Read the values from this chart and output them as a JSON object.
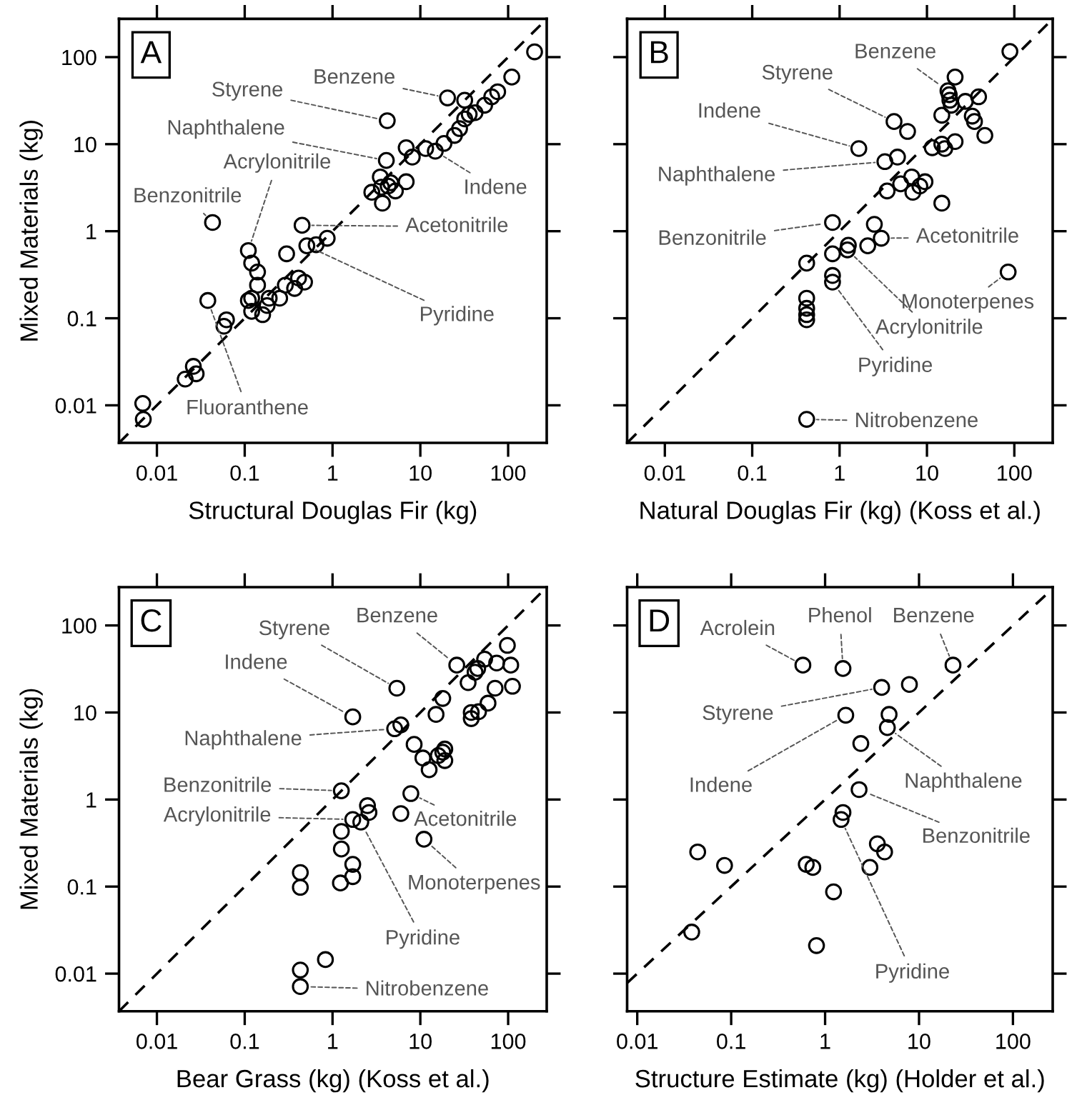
{
  "chart_data": [
    {
      "type": "scatter",
      "xlabel": "Structural Douglas Fir (kg)",
      "ylabel": "Mixed Materials (kg)",
      "log": "xy",
      "xlim": [
        0.0037,
        275
      ],
      "ylim": [
        0.0037,
        275
      ],
      "xticks": [
        0.01,
        0.1,
        1,
        10,
        100
      ],
      "yticks": [
        0.01,
        0.1,
        1,
        10,
        100
      ],
      "annotations": [
        "A",
        {
          "text": "Benzene",
          "x": 20.4,
          "y": 34
        },
        {
          "text": "Styrene",
          "x": 4.2,
          "y": 18.6
        },
        {
          "text": "Naphthalene",
          "x": 4.1,
          "y": 6.5
        },
        {
          "text": "Acrylonitrile",
          "x": 0.11,
          "y": 0.6
        },
        {
          "text": "Benzonitrile",
          "x": 0.043,
          "y": 1.26
        },
        {
          "text": "Indene",
          "x": 14.8,
          "y": 8.3
        },
        {
          "text": "Acetonitrile",
          "x": 0.45,
          "y": 1.17
        },
        {
          "text": "Pyridine",
          "x": 0.51,
          "y": 0.68
        },
        {
          "text": "Fluoranthene",
          "x": 0.038,
          "y": 0.16
        }
      ],
      "series": [
        {
          "type": "scatter",
          "color": "#000000",
          "marker": "circle",
          "x": [
            0.0069,
            0.007,
            0.021,
            0.026,
            0.028,
            0.038,
            0.043,
            0.058,
            0.062,
            0.11,
            0.12,
            0.14,
            0.14,
            0.11,
            0.12,
            0.12,
            0.16,
            0.19,
            0.18,
            0.25,
            0.3,
            0.29,
            0.37,
            0.41,
            0.48,
            0.45,
            0.51,
            0.65,
            0.87,
            2.8,
            3.5,
            3.7,
            3.6,
            4.3,
            4.6,
            5.2,
            6.9,
            4.1,
            4.2,
            6.9,
            8.1,
            11.5,
            14.8,
            18.6,
            20.4,
            24.5,
            28,
            32,
            32,
            36,
            42,
            54,
            65,
            76,
            110,
            200
          ],
          "values": [
            0.0105,
            0.0069,
            0.02,
            0.028,
            0.023,
            0.16,
            1.26,
            0.081,
            0.096,
            0.6,
            0.43,
            0.34,
            0.24,
            0.16,
            0.17,
            0.12,
            0.11,
            0.17,
            0.14,
            0.17,
            0.55,
            0.24,
            0.22,
            0.29,
            0.26,
            1.17,
            0.68,
            0.7,
            0.83,
            2.8,
            4.2,
            2.1,
            3.2,
            3.3,
            3.6,
            2.9,
            3.7,
            6.5,
            18.6,
            9.1,
            7.1,
            8.9,
            8.3,
            10.2,
            34,
            12.6,
            15.1,
            32,
            19.5,
            22,
            23,
            28,
            35,
            40,
            59,
            115
          ]
        },
        {
          "type": "line",
          "color": "#000000",
          "line_style": "dashed",
          "x": [
            0.0037,
            275
          ],
          "values": [
            0.0037,
            275
          ]
        }
      ]
    },
    {
      "type": "scatter",
      "xlabel": "Natural Douglas Fir (kg) (Koss et al.)",
      "log": "xy",
      "tick_labels": "x",
      "xlim": [
        0.0037,
        275
      ],
      "ylim": [
        0.0037,
        275
      ],
      "xticks": [
        0.01,
        0.1,
        1,
        10,
        100
      ],
      "yticks": [
        0.01,
        0.1,
        1,
        10,
        100
      ],
      "annotations": [
        "B",
        {
          "text": "Benzene",
          "x": 17.4,
          "y": 41
        },
        {
          "text": "Styrene",
          "x": 4.2,
          "y": 18.2
        },
        {
          "text": "Indene",
          "x": 1.66,
          "y": 8.9
        },
        {
          "text": "Naphthalene",
          "x": 3.3,
          "y": 6.3
        },
        {
          "text": "Benzonitrile",
          "x": 0.83,
          "y": 1.26
        },
        {
          "text": "Acetonitrile",
          "x": 3.0,
          "y": 0.83
        },
        {
          "text": "Monoterpenes",
          "x": 85,
          "y": 0.34
        },
        {
          "text": "Acrylonitrile",
          "x": 1.23,
          "y": 0.61
        },
        {
          "text": "Pyridine",
          "x": 0.83,
          "y": 0.26
        },
        {
          "text": "Nitrobenzene",
          "x": 0.42,
          "y": 0.0069
        }
      ],
      "series": [
        {
          "type": "scatter",
          "color": "#000000",
          "marker": "circle",
          "x": [
            89,
            21,
            17.4,
            18,
            18.3,
            19,
            27.5,
            39,
            14.8,
            33,
            35,
            46,
            4.2,
            6.0,
            1.66,
            11.5,
            14.8,
            16,
            21,
            3.3,
            4.6,
            3.5,
            5.0,
            6.7,
            6.9,
            8.3,
            9.5,
            14.8,
            0.83,
            2.5,
            3.0,
            2.1,
            1.26,
            1.23,
            0.83,
            0.42,
            0.83,
            0.83,
            85,
            0.42,
            0.42,
            0.42,
            0.42,
            0.42
          ],
          "values": [
            116,
            59,
            41,
            37,
            32,
            28,
            31,
            35,
            21.5,
            21,
            18.2,
            12.6,
            18.2,
            14,
            8.9,
            9.1,
            10,
            8.9,
            10.7,
            6.3,
            7.1,
            2.9,
            3.5,
            4.2,
            2.8,
            3.3,
            3.7,
            2.1,
            1.26,
            1.2,
            0.83,
            0.68,
            0.69,
            0.61,
            0.55,
            0.43,
            0.31,
            0.26,
            0.34,
            0.17,
            0.13,
            0.11,
            0.096,
            0.0069
          ]
        },
        {
          "type": "line",
          "color": "#000000",
          "line_style": "dashed",
          "x": [
            0.0037,
            275
          ],
          "values": [
            0.0037,
            275
          ]
        }
      ]
    },
    {
      "type": "scatter",
      "xlabel": "Bear Grass (kg) (Koss et al.)",
      "ylabel": "Mixed Materials (kg)",
      "log": "xy",
      "xlim": [
        0.0037,
        275
      ],
      "ylim": [
        0.0037,
        275
      ],
      "xticks": [
        0.01,
        0.1,
        1,
        10,
        100
      ],
      "yticks": [
        0.01,
        0.1,
        1,
        10,
        100
      ],
      "annotations": [
        "C",
        {
          "text": "Benzene",
          "x": 26,
          "y": 35
        },
        {
          "text": "Styrene",
          "x": 5.4,
          "y": 19
        },
        {
          "text": "Indene",
          "x": 1.7,
          "y": 8.9
        },
        {
          "text": "Naphthalene",
          "x": 5.1,
          "y": 6.5
        },
        {
          "text": "Benzonitrile",
          "x": 1.26,
          "y": 1.26
        },
        {
          "text": "Acrylonitrile",
          "x": 1.7,
          "y": 0.59
        },
        {
          "text": "Acetonitrile",
          "x": 7.8,
          "y": 1.17
        },
        {
          "text": "Monoterpenes",
          "x": 11,
          "y": 0.35
        },
        {
          "text": "Pyridine",
          "x": 2.1,
          "y": 0.55
        },
        {
          "text": "Nitrobenzene",
          "x": 0.43,
          "y": 0.0071
        }
      ],
      "series": [
        {
          "type": "scatter",
          "color": "#000000",
          "marker": "circle",
          "x": [
            98,
            54,
            74,
            107,
            26,
            42,
            45,
            35,
            71,
            112,
            59,
            18,
            15.1,
            38,
            46,
            38,
            5.4,
            1.7,
            5.1,
            6.0,
            8.5,
            10.7,
            12.6,
            16,
            18,
            19,
            19,
            1.26,
            7.8,
            2.5,
            2.6,
            1.7,
            2.1,
            6.0,
            11,
            1.26,
            1.26,
            1.7,
            1.7,
            1.23,
            0.43,
            0.43,
            0.83,
            0.43,
            0.43
          ],
          "values": [
            59,
            41,
            37,
            35,
            35,
            29,
            32,
            22,
            19,
            20,
            12.8,
            14.5,
            9.5,
            10,
            10.2,
            8.5,
            19,
            8.9,
            6.5,
            7.2,
            4.3,
            3.0,
            2.2,
            3.2,
            3.5,
            3.8,
            2.8,
            1.26,
            1.17,
            0.85,
            0.71,
            0.59,
            0.55,
            0.69,
            0.35,
            0.43,
            0.27,
            0.18,
            0.13,
            0.11,
            0.145,
            0.098,
            0.0145,
            0.011,
            0.0071
          ]
        },
        {
          "type": "line",
          "color": "#000000",
          "line_style": "dashed",
          "x": [
            0.0037,
            275
          ],
          "values": [
            0.0037,
            275
          ]
        }
      ]
    },
    {
      "type": "scatter",
      "xlabel": "Structure Estimate (kg) (Holder et al.)",
      "log": "xy",
      "tick_labels": "x",
      "xlim": [
        0.0078,
        265
      ],
      "ylim": [
        0.0037,
        275
      ],
      "xticks": [
        0.01,
        0.1,
        1,
        10,
        100
      ],
      "yticks": [
        0.01,
        0.1,
        1,
        10,
        100
      ],
      "annotations": [
        "D",
        {
          "text": "Acrolein",
          "x": 0.58,
          "y": 35
        },
        {
          "text": "Phenol",
          "x": 1.55,
          "y": 32
        },
        {
          "text": "Benzene",
          "x": 23,
          "y": 35
        },
        {
          "text": "Styrene",
          "x": 4.0,
          "y": 19.4
        },
        {
          "text": "Indene",
          "x": 1.66,
          "y": 9.3
        },
        {
          "text": "Naphthalene",
          "x": 4.6,
          "y": 6.7
        },
        {
          "text": "Benzonitrile",
          "x": 2.3,
          "y": 1.3
        },
        {
          "text": "Pyridine",
          "x": 1.48,
          "y": 0.59
        }
      ],
      "series": [
        {
          "type": "scatter",
          "color": "#000000",
          "marker": "circle",
          "x": [
            0.58,
            1.55,
            23,
            4.0,
            7.9,
            1.66,
            4.8,
            4.6,
            2.4,
            2.3,
            1.55,
            1.48,
            3.6,
            4.3,
            3.0,
            0.044,
            0.085,
            0.63,
            0.74,
            1.23,
            0.038,
            0.81
          ],
          "values": [
            35,
            32,
            35,
            19.4,
            21,
            9.3,
            9.5,
            6.7,
            4.4,
            1.3,
            0.71,
            0.59,
            0.31,
            0.25,
            0.166,
            0.25,
            0.175,
            0.18,
            0.166,
            0.087,
            0.03,
            0.021
          ]
        },
        {
          "type": "line",
          "color": "#000000",
          "line_style": "dashed",
          "marker": "none",
          "x": [
            0.0078,
            265
          ],
          "values": [
            0.0078,
            265
          ]
        }
      ]
    }
  ]
}
